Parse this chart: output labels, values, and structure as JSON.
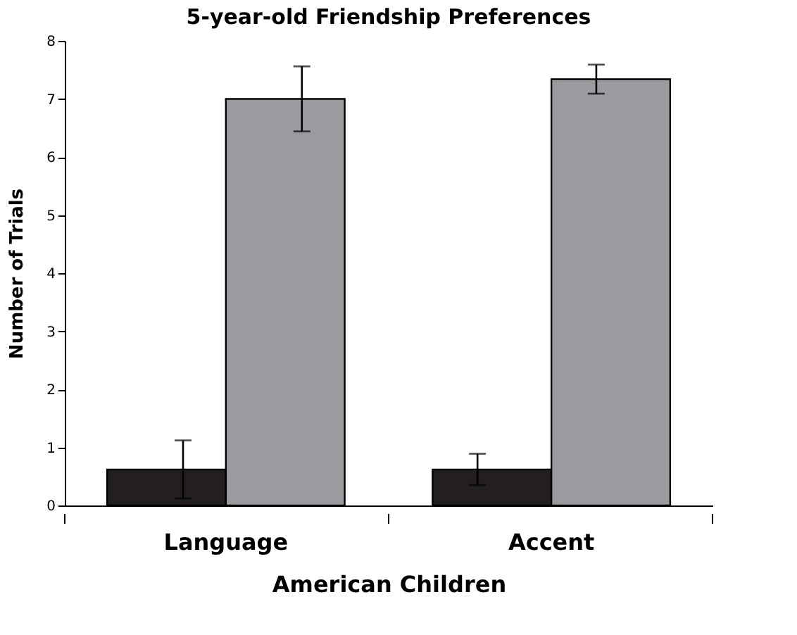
{
  "chart_data": {
    "type": "bar",
    "title": "5-year-old Friendship Preferences",
    "xlabel": "American Children",
    "ylabel": "Number of Trials",
    "categories": [
      "Language",
      "Accent"
    ],
    "series": [
      {
        "color": "#231f20",
        "values": [
          0.62,
          0.62
        ],
        "errors": [
          0.5,
          0.27
        ]
      },
      {
        "color": "#9a9b9f",
        "values": [
          7.0,
          7.34
        ],
        "errors": [
          0.56,
          0.25
        ]
      }
    ],
    "ylim": [
      0,
      8
    ],
    "yticks": [
      0,
      1,
      2,
      3,
      4,
      5,
      6,
      7,
      8
    ],
    "grid": false,
    "legend": false
  }
}
